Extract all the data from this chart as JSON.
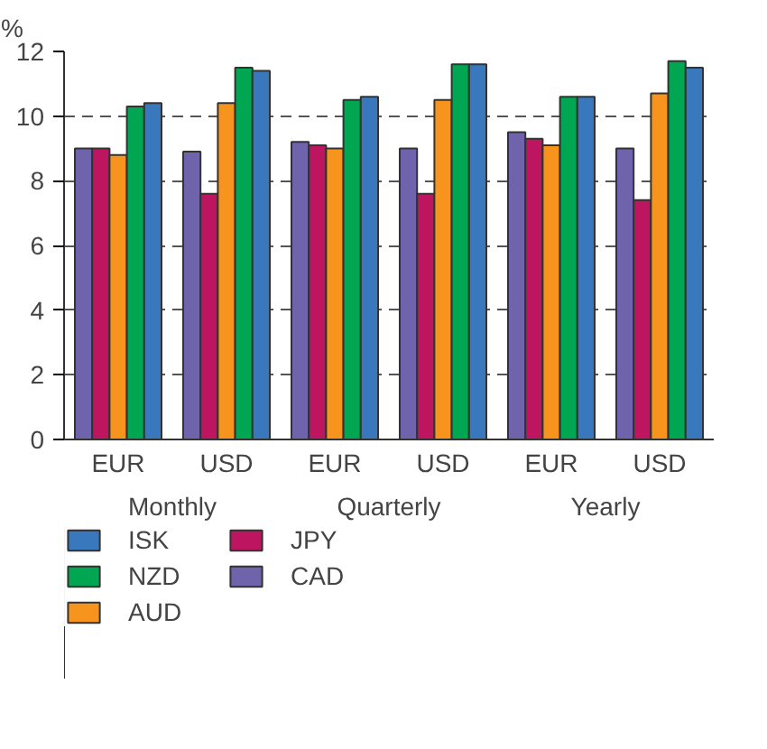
{
  "chart_data": {
    "type": "bar",
    "ylabel": "%",
    "categories": [
      "EUR",
      "USD",
      "EUR",
      "USD",
      "EUR",
      "USD"
    ],
    "annotations": [
      "Monthly",
      "Quarterly",
      "Yearly"
    ],
    "series": [
      {
        "name": "CAD",
        "color": "#6f63ac",
        "values": [
          9.0,
          8.9,
          9.2,
          9.0,
          9.5,
          9.0
        ]
      },
      {
        "name": "JPY",
        "color": "#be1560",
        "values": [
          9.0,
          7.6,
          9.1,
          7.6,
          9.3,
          7.4
        ]
      },
      {
        "name": "AUD",
        "color": "#f7941d",
        "values": [
          8.8,
          10.4,
          9.0,
          10.5,
          9.1,
          10.7
        ]
      },
      {
        "name": "NZD",
        "color": "#00a651",
        "values": [
          10.3,
          11.5,
          10.5,
          11.6,
          10.6,
          11.7
        ]
      },
      {
        "name": "ISK",
        "color": "#3a78bd",
        "values": [
          10.4,
          11.4,
          10.6,
          11.6,
          10.6,
          11.5
        ]
      }
    ],
    "ylim": [
      0,
      12
    ],
    "yticks": [
      0,
      2,
      4,
      6,
      8,
      10,
      12
    ],
    "grid": "y",
    "legend": "bottom"
  }
}
